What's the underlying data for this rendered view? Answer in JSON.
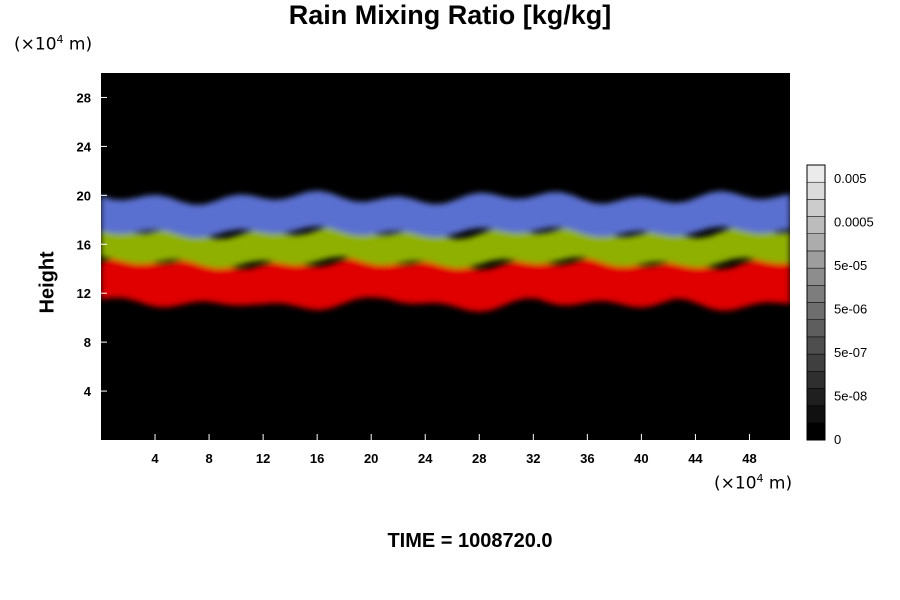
{
  "chart_data": {
    "type": "heatmap",
    "title": "Rain Mixing Ratio [kg/kg]",
    "ylabel": "Height",
    "xlabel": "",
    "unit_base": "(×10",
    "unit_exp": "4",
    "unit_suffix": " m)",
    "x_ticks": [
      "4",
      "8",
      "12",
      "16",
      "20",
      "24",
      "28",
      "32",
      "36",
      "40",
      "44",
      "48"
    ],
    "y_ticks": [
      "4",
      "8",
      "12",
      "16",
      "20",
      "24",
      "28"
    ],
    "xlim": [
      0,
      51
    ],
    "ylim": [
      0,
      30
    ],
    "colorbar_ticks": [
      "0",
      "5e-08",
      "5e-07",
      "5e-06",
      "5e-05",
      "0.0005",
      "0.005"
    ],
    "bands": [
      {
        "name": "red",
        "color": "#e00000",
        "bottom": 11.5,
        "top": 14.5
      },
      {
        "name": "green",
        "color": "#8fb000",
        "bottom": 14.5,
        "top": 17.0
      },
      {
        "name": "blue",
        "color": "#5a6fd0",
        "bottom": 17.0,
        "top": 19.8
      }
    ],
    "background_color": "#000000",
    "time_label": "TIME = 1008720.0"
  }
}
